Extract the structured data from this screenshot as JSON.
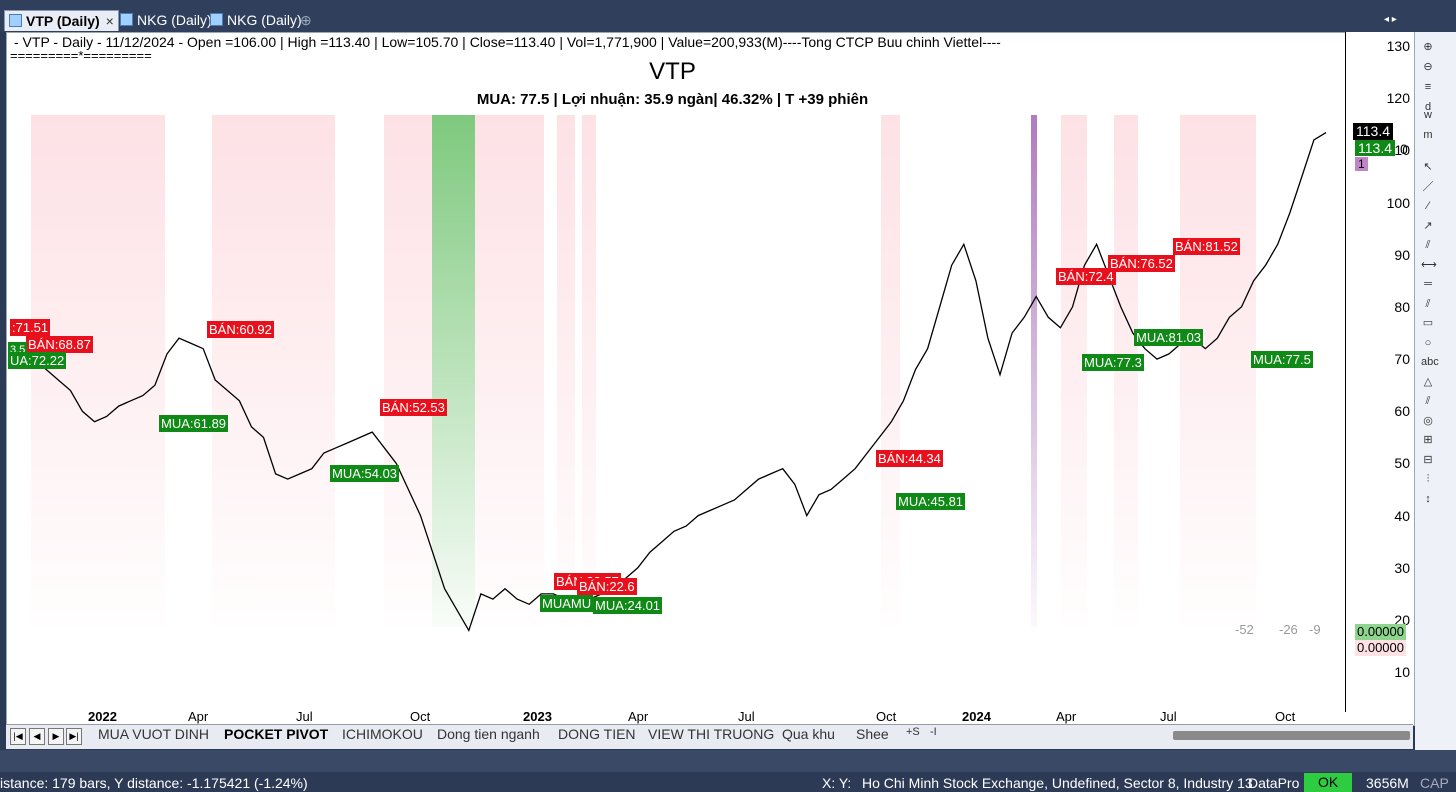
{
  "doc_tabs": [
    {
      "label": "VTP (Daily)",
      "active": true,
      "close": "×"
    },
    {
      "label": "NKG (Daily)",
      "active": false
    },
    {
      "label": "NKG (Daily)",
      "active": false
    }
  ],
  "tab_plus": "⊕",
  "tab_scroll": "◂ ▸",
  "info_line": " - VTP - Daily  - 11/12/2024 -  Open =106.00 | High =113.40 | Low=105.70 | Close=113.40 | Vol=1,771,900 | Value=200,933(M)----Tong CTCP Buu chinh Viettel----",
  "separator": "=========*=========",
  "chart_title": "VTP",
  "chart_subtitle": "MUA:  77.5  | Lợi nhuận: 35.9 ngàn| 46.32% | T +39 phiên",
  "chart_data": {
    "type": "line",
    "x_ticks": [
      "2022",
      "Apr",
      "Jul",
      "Oct",
      "2023",
      "Apr",
      "Jul",
      "Oct",
      "2024",
      "Apr",
      "Jul",
      "Oct"
    ],
    "y_ticks": [
      130,
      120,
      110,
      100,
      90,
      80,
      70,
      60,
      50,
      40,
      30,
      20,
      10
    ],
    "ylim": [
      6,
      133
    ],
    "series": [
      {
        "values": [
          71,
          72,
          70,
          68,
          66,
          64,
          60,
          58,
          59,
          61,
          62,
          63,
          65,
          71,
          74,
          73,
          72,
          66,
          64,
          62,
          57,
          55,
          48,
          47,
          48,
          49,
          52,
          53,
          54,
          55,
          56,
          53,
          50,
          45,
          40,
          33,
          26,
          22,
          18,
          25,
          24,
          26,
          24,
          23,
          25,
          25,
          24,
          23,
          24,
          25,
          26,
          28,
          30,
          33,
          35,
          37,
          38,
          40,
          41,
          42,
          43,
          45,
          47,
          48,
          49,
          46,
          40,
          44,
          45,
          47,
          49,
          52,
          55,
          58,
          62,
          68,
          72,
          80,
          88,
          92,
          85,
          74,
          67,
          75,
          78,
          82,
          78,
          76,
          80,
          88,
          92,
          86,
          80,
          75,
          72,
          70,
          71,
          73,
          74,
          72,
          74,
          78,
          80,
          85,
          88,
          92,
          98,
          105,
          112,
          113.4
        ]
      }
    ],
    "buy_tags": [
      "UA:72.22",
      "MUA:61.89",
      "MUA:54.03",
      "MUAMU",
      "MUA:24.01",
      "MUA:45.81",
      "MUA:77.3",
      "MUA:81.03",
      "MUA:77.5"
    ],
    "sell_tags": [
      ":71.51",
      "BÁN:68.87",
      "BÁN:60.92",
      "BÁN:52.53",
      "BÁN:23.57",
      "BÁN:22.6",
      "BÁN:44.34",
      "BÁN:72.4",
      "BÁN:76.52",
      "BÁN:81.52"
    ],
    "last_price_black": "113.4",
    "last_price_green": "113.4",
    "last_price_suffix": "0",
    "purple_marker": "1",
    "indicator_values": [
      "-52",
      "-26",
      "-9"
    ],
    "osc_green": "0.00000",
    "osc_pink": "0.00000",
    "band_colors": {
      "pink": "#fde1e5",
      "green": "#7fc97f",
      "purple": "#b07cc0"
    },
    "partial_tag": "3.5"
  },
  "sheet_tabs": [
    "MUA VUOT DINH",
    "POCKET PIVOT",
    "ICHIMOKOU",
    "Dong tien nganh",
    "DONG TIEN",
    "VIEW THI TRUONG",
    "Qua khu",
    "Shee"
  ],
  "sheet_nav": [
    "|◀",
    "◀",
    "▶",
    "▶|"
  ],
  "sheet_extra": [
    "+S",
    "-I"
  ],
  "status": {
    "distance": "istance: 179 bars, Y distance: -1.175421 (-1.24%)",
    "xy": "X: Y:",
    "exchange": "Ho Chi Minh Stock Exchange, Undefined, Sector 8, Industry 13",
    "datapro": "DataPro",
    "ok": "OK",
    "mem": "3656M",
    "cap": "CAP"
  },
  "right_tools": [
    "⊕",
    "⊖",
    "≡",
    "d",
    "w",
    "m",
    "↖",
    "／",
    "⁄",
    "↗",
    "⫽",
    "⟷",
    "═",
    "⫽",
    "▭",
    "○",
    "abc",
    "△",
    "⫽",
    "◎",
    "⊞",
    "⊟",
    "⫶",
    "↕"
  ]
}
